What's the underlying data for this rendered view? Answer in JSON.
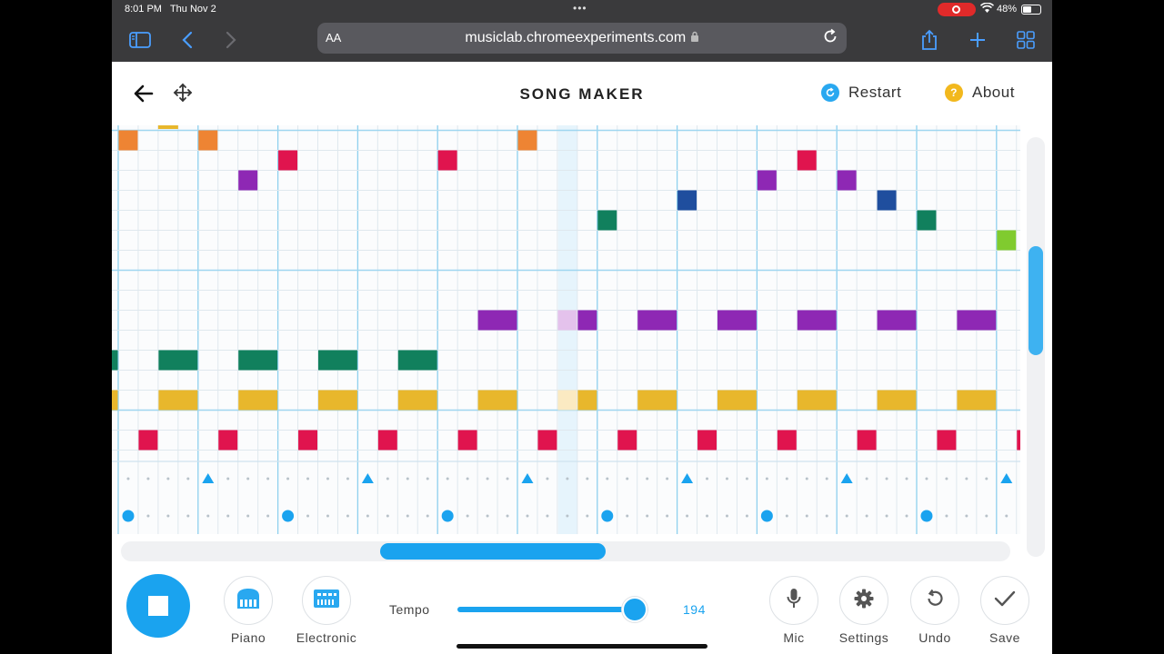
{
  "status_bar": {
    "time": "8:01 PM",
    "date": "Thu Nov 2",
    "battery": "48%"
  },
  "browser": {
    "aa": "AA",
    "url": "musiclab.chromeexperiments.com"
  },
  "header": {
    "title": "SONG MAKER",
    "restart_label": "Restart",
    "about_label": "About",
    "about_glyph": "?"
  },
  "grid": {
    "colors": {
      "orange": "#ee8433",
      "red": "#e0144e",
      "purple": "#8e28b4",
      "blue": "#1f4e9e",
      "green": "#11805d",
      "lime": "#80cb2f",
      "yellow": "#e8b72c",
      "accent": "#1aa3ef"
    },
    "melody_notes": [
      {
        "col": 0,
        "row": 0,
        "color": "orange",
        "len": 1
      },
      {
        "col": 4,
        "row": 0,
        "color": "orange",
        "len": 1
      },
      {
        "col": 20,
        "row": 0,
        "color": "orange",
        "len": 1
      },
      {
        "col": 8,
        "row": 1,
        "color": "red",
        "len": 1
      },
      {
        "col": 16,
        "row": 1,
        "color": "red",
        "len": 1
      },
      {
        "col": 34,
        "row": 1,
        "color": "red",
        "len": 1
      },
      {
        "col": 6,
        "row": 2,
        "color": "purple",
        "len": 1
      },
      {
        "col": 32,
        "row": 2,
        "color": "purple",
        "len": 1
      },
      {
        "col": 36,
        "row": 2,
        "color": "purple",
        "len": 1
      },
      {
        "col": 28,
        "row": 3,
        "color": "blue",
        "len": 1
      },
      {
        "col": 38,
        "row": 3,
        "color": "blue",
        "len": 1
      },
      {
        "col": 24,
        "row": 4,
        "color": "green",
        "len": 1
      },
      {
        "col": 40,
        "row": 4,
        "color": "green",
        "len": 1
      },
      {
        "col": 44,
        "row": 5,
        "color": "lime",
        "len": 1
      },
      {
        "col": 18,
        "row": 9,
        "color": "purple",
        "len": 2
      },
      {
        "col": 23,
        "row": 9,
        "color": "purple",
        "len": 1
      },
      {
        "col": 26,
        "row": 9,
        "color": "purple",
        "len": 2
      },
      {
        "col": 30,
        "row": 9,
        "color": "purple",
        "len": 2
      },
      {
        "col": 34,
        "row": 9,
        "color": "purple",
        "len": 2
      },
      {
        "col": 38,
        "row": 9,
        "color": "purple",
        "len": 2
      },
      {
        "col": 42,
        "row": 9,
        "color": "purple",
        "len": 2
      },
      {
        "col": -1,
        "row": 11,
        "color": "green",
        "len": 1
      },
      {
        "col": 2,
        "row": 11,
        "color": "green",
        "len": 2
      },
      {
        "col": 6,
        "row": 11,
        "color": "green",
        "len": 2
      },
      {
        "col": 10,
        "row": 11,
        "color": "green",
        "len": 2
      },
      {
        "col": 14,
        "row": 11,
        "color": "green",
        "len": 2
      },
      {
        "col": -1,
        "row": 13,
        "color": "yellow",
        "len": 1
      },
      {
        "col": 2,
        "row": 13,
        "color": "yellow",
        "len": 2
      },
      {
        "col": 6,
        "row": 13,
        "color": "yellow",
        "len": 2
      },
      {
        "col": 10,
        "row": 13,
        "color": "yellow",
        "len": 2
      },
      {
        "col": 14,
        "row": 13,
        "color": "yellow",
        "len": 2
      },
      {
        "col": 18,
        "row": 13,
        "color": "yellow",
        "len": 2
      },
      {
        "col": 23,
        "row": 13,
        "color": "yellow",
        "len": 1
      },
      {
        "col": 26,
        "row": 13,
        "color": "yellow",
        "len": 2
      },
      {
        "col": 30,
        "row": 13,
        "color": "yellow",
        "len": 2
      },
      {
        "col": 34,
        "row": 13,
        "color": "yellow",
        "len": 2
      },
      {
        "col": 38,
        "row": 13,
        "color": "yellow",
        "len": 2
      },
      {
        "col": 42,
        "row": 13,
        "color": "yellow",
        "len": 2
      },
      {
        "col": 1,
        "row": 15,
        "color": "red",
        "len": 1
      },
      {
        "col": 5,
        "row": 15,
        "color": "red",
        "len": 1
      },
      {
        "col": 9,
        "row": 15,
        "color": "red",
        "len": 1
      },
      {
        "col": 13,
        "row": 15,
        "color": "red",
        "len": 1
      },
      {
        "col": 17,
        "row": 15,
        "color": "red",
        "len": 1
      },
      {
        "col": 21,
        "row": 15,
        "color": "red",
        "len": 1
      },
      {
        "col": 25,
        "row": 15,
        "color": "red",
        "len": 1
      },
      {
        "col": 29,
        "row": 15,
        "color": "red",
        "len": 1
      },
      {
        "col": 33,
        "row": 15,
        "color": "red",
        "len": 1
      },
      {
        "col": 37,
        "row": 15,
        "color": "red",
        "len": 1
      },
      {
        "col": 41,
        "row": 15,
        "color": "red",
        "len": 1
      },
      {
        "col": 45,
        "row": 15,
        "color": "red",
        "len": 1
      }
    ],
    "ghost_notes": [
      {
        "col": 22,
        "row": 9,
        "color": "#e4c2ec"
      },
      {
        "col": 22,
        "row": 13,
        "color": "#fbeac2"
      }
    ],
    "playhead_col": 22,
    "triangle_cols": [
      4,
      12,
      20,
      28,
      36,
      44
    ],
    "circle_cols": [
      0,
      8,
      16,
      24,
      32,
      40
    ]
  },
  "controls": {
    "instrument_1": "Piano",
    "instrument_2": "Electronic",
    "tempo_label": "Tempo",
    "tempo_value": "194",
    "tempo_level": 0.93,
    "mic_label": "Mic",
    "settings_label": "Settings",
    "undo_label": "Undo",
    "save_label": "Save"
  }
}
